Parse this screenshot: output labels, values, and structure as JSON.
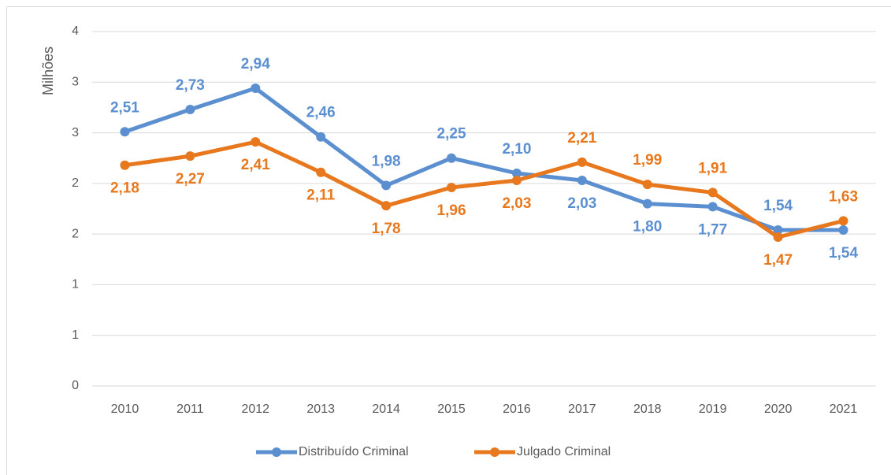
{
  "chart_data": {
    "type": "line",
    "y_label": "Milhões",
    "categories": [
      "2010",
      "2011",
      "2012",
      "2013",
      "2014",
      "2015",
      "2016",
      "2017",
      "2018",
      "2019",
      "2020",
      "2021"
    ],
    "series": [
      {
        "name": "Distribuído Criminal",
        "color": "#5b8fd0",
        "values": [
          2.51,
          2.73,
          2.94,
          2.46,
          1.98,
          2.25,
          2.1,
          2.03,
          1.8,
          1.77,
          1.54,
          1.54
        ],
        "value_labels": [
          "2,51",
          "2,73",
          "2,94",
          "2,46",
          "1,98",
          "2,25",
          "2,10",
          "2,03",
          "1,80",
          "1,77",
          "1,54",
          "1,54"
        ]
      },
      {
        "name": "Julgado Criminal",
        "color": "#e8781e",
        "values": [
          2.18,
          2.27,
          2.41,
          2.11,
          1.78,
          1.96,
          2.03,
          2.21,
          1.99,
          1.91,
          1.47,
          1.63
        ],
        "value_labels": [
          "2,18",
          "2,27",
          "2,41",
          "2,11",
          "1,78",
          "1,96",
          "2,03",
          "2,21",
          "1,99",
          "1,91",
          "1,47",
          "1,63"
        ]
      }
    ],
    "ylim": [
      0,
      3.5
    ],
    "yticks": [
      0,
      {
        "value": 0.5,
        "label": "1"
      },
      {
        "value": 1,
        "label": "1"
      },
      {
        "value": 1.5,
        "label": "2"
      },
      {
        "value": 2,
        "label": "2"
      },
      {
        "value": 2.5,
        "label": "3"
      },
      {
        "value": 3,
        "label": "3"
      },
      {
        "value": 3.5,
        "label": "4"
      }
    ],
    "grid": true,
    "legend": "bottom"
  }
}
